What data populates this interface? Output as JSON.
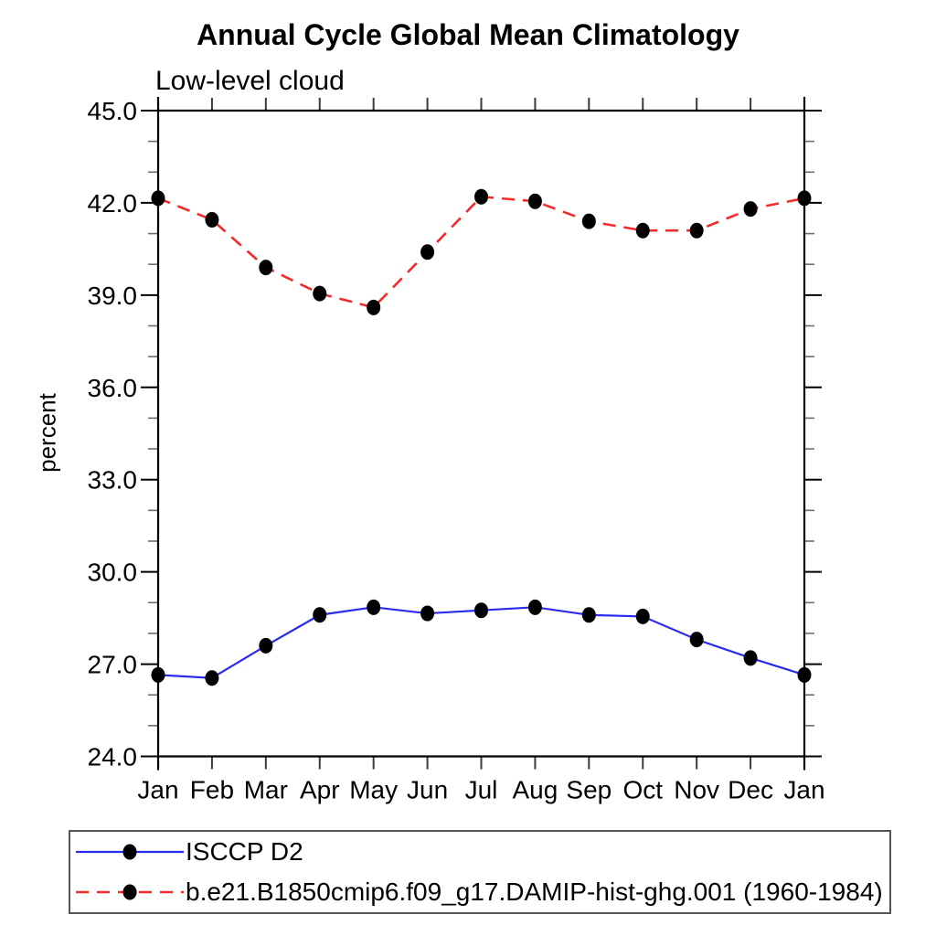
{
  "chart_data": {
    "type": "line",
    "title": "Annual Cycle Global Mean Climatology",
    "subtitle": "Low-level cloud",
    "ylabel": "percent",
    "categories": [
      "Jan",
      "Feb",
      "Mar",
      "Apr",
      "May",
      "Jun",
      "Jul",
      "Aug",
      "Sep",
      "Oct",
      "Nov",
      "Dec",
      "Jan"
    ],
    "ylim": [
      24.0,
      45.0
    ],
    "ytick_major_step": 3.0,
    "ytick_minor_step": 1.0,
    "ytick_labels": [
      "24.0",
      "27.0",
      "30.0",
      "33.0",
      "36.0",
      "39.0",
      "42.0",
      "45.0"
    ],
    "grid": false,
    "legend_position": "bottom",
    "marker": "filled-circle",
    "marker_color": "#000000",
    "series": [
      {
        "name": "ISCCP D2",
        "color": "#2b2bf0",
        "line_style": "solid",
        "values": [
          26.65,
          26.55,
          27.6,
          28.6,
          28.85,
          28.65,
          28.75,
          28.85,
          28.6,
          28.55,
          27.8,
          27.2,
          26.65
        ]
      },
      {
        "name": "b.e21.B1850cmip6.f09_g17.DAMIP-hist-ghg.001 (1960-1984)",
        "color": "#f22b2b",
        "line_style": "dashed",
        "values": [
          42.15,
          41.45,
          39.9,
          39.05,
          38.6,
          40.4,
          42.2,
          42.05,
          41.4,
          41.1,
          41.1,
          41.8,
          42.15
        ]
      }
    ]
  }
}
